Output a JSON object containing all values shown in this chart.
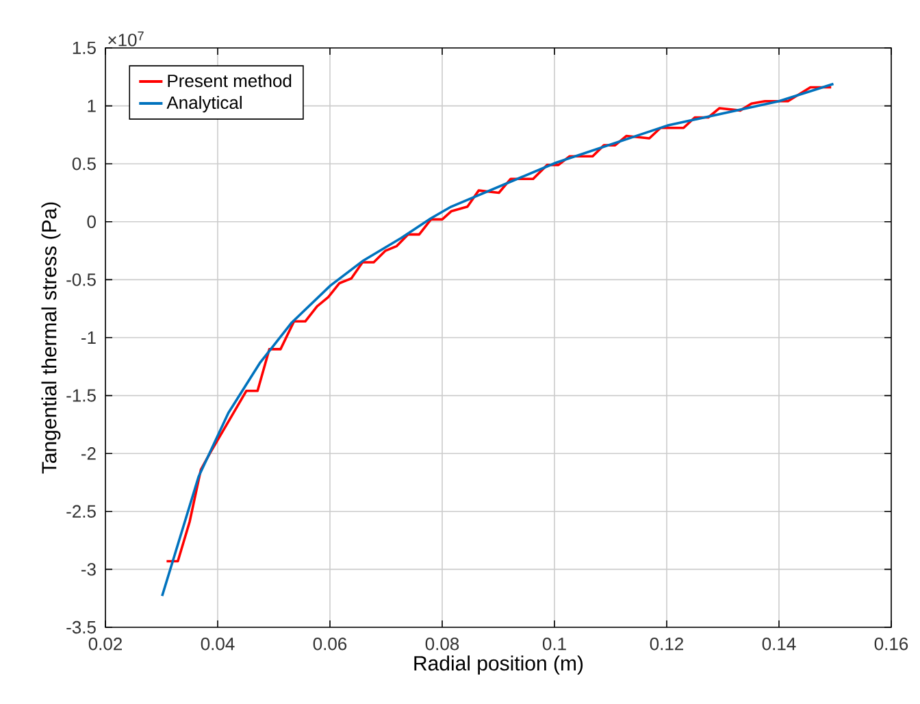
{
  "chart_data": {
    "type": "line",
    "xlabel": "Radial position (m)",
    "ylabel": "Tangential thermal stress (Pa)",
    "annotations": [
      "×10$^{7}$"
    ],
    "xlim": [
      0.02,
      0.16
    ],
    "xticks": [
      0.02,
      0.04,
      0.06,
      0.08,
      0.1,
      0.12,
      0.14,
      0.16
    ],
    "ylim": [
      -3.5,
      1.5
    ],
    "yticks": [
      -3.5,
      -3,
      -2.5,
      -2,
      -1.5,
      -1,
      -0.5,
      0,
      0.5,
      1,
      1.5
    ],
    "grid": true,
    "legend": "top left",
    "line_style": "solid",
    "series": [
      {
        "name": "Present method",
        "color": "#ff0000",
        "x": [
          0.0309,
          0.0329,
          0.035,
          0.037,
          0.0386,
          0.0451,
          0.0471,
          0.0492,
          0.0512,
          0.0536,
          0.0556,
          0.0577,
          0.0597,
          0.0617,
          0.0638,
          0.0658,
          0.0678,
          0.0699,
          0.0719,
          0.0739,
          0.0759,
          0.078,
          0.08,
          0.0816,
          0.0845,
          0.0865,
          0.0901,
          0.0922,
          0.0962,
          0.0987,
          0.1007,
          0.1027,
          0.1068,
          0.1088,
          0.1108,
          0.1128,
          0.1169,
          0.1189,
          0.123,
          0.125,
          0.1274,
          0.1294,
          0.1331,
          0.1351,
          0.1375,
          0.1416,
          0.1456,
          0.1493
        ],
        "values": [
          -2.93,
          -2.93,
          -2.59,
          -2.14,
          -2.0,
          -1.46,
          -1.46,
          -1.1,
          -1.1,
          -0.86,
          -0.86,
          -0.73,
          -0.65,
          -0.53,
          -0.49,
          -0.35,
          -0.35,
          -0.25,
          -0.21,
          -0.11,
          -0.11,
          0.02,
          0.02,
          0.09,
          0.13,
          0.27,
          0.25,
          0.37,
          0.37,
          0.49,
          0.49,
          0.565,
          0.565,
          0.66,
          0.66,
          0.74,
          0.72,
          0.81,
          0.81,
          0.9,
          0.9,
          0.98,
          0.96,
          1.02,
          1.04,
          1.04,
          1.16,
          1.16
        ]
      },
      {
        "name": "Analytical",
        "color": "#0072bd",
        "x": [
          0.0301,
          0.0366,
          0.0419,
          0.0475,
          0.0532,
          0.0601,
          0.0658,
          0.0727,
          0.078,
          0.0816,
          0.1003,
          0.1201,
          0.14,
          0.1497
        ],
        "values": [
          -3.23,
          -2.2,
          -1.65,
          -1.22,
          -0.87,
          -0.55,
          -0.34,
          -0.14,
          0.03,
          0.13,
          0.51,
          0.83,
          1.04,
          1.19
        ]
      }
    ]
  }
}
